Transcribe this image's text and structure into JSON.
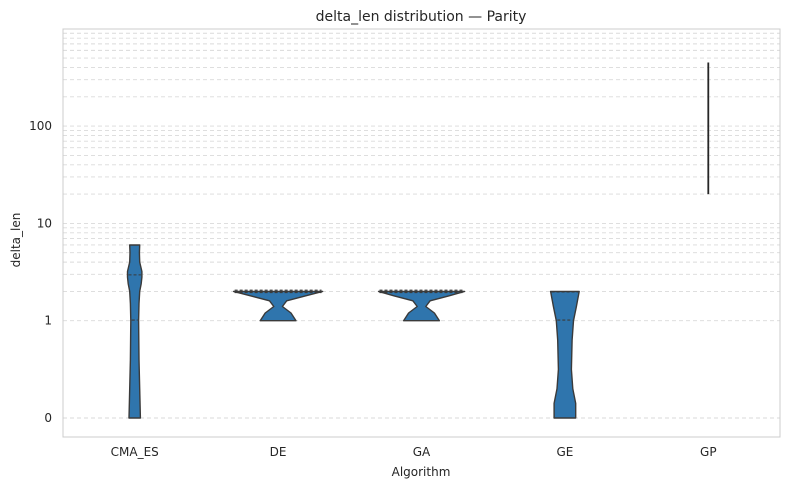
{
  "chart_data": {
    "type": "violin",
    "title": "delta_len distribution — Parity",
    "xlabel": "Algorithm",
    "ylabel": "delta_len",
    "yscale": "symlog",
    "y_ticks": [
      0,
      1,
      10,
      100
    ],
    "y_tick_labels": [
      "0",
      "1",
      "10",
      "100"
    ],
    "ylim": [
      -0.15,
      700
    ],
    "grid": "y",
    "categories": [
      "CMA_ES",
      "DE",
      "GA",
      "GE",
      "GP"
    ],
    "violin_color": "#2f75ad",
    "edge_color": "#3a3a3a",
    "violins": [
      {
        "category": "CMA_ES",
        "kind": "violin",
        "profile": [
          [
            0,
            0.08
          ],
          [
            0.3,
            0.07
          ],
          [
            0.6,
            0.06
          ],
          [
            1.0,
            0.055
          ],
          [
            1.5,
            0.06
          ],
          [
            2.0,
            0.07
          ],
          [
            2.4,
            0.09
          ],
          [
            2.8,
            0.1
          ],
          [
            3.2,
            0.1
          ],
          [
            4.0,
            0.07
          ],
          [
            5.0,
            0.065
          ],
          [
            6.0,
            0.07
          ]
        ],
        "quartiles": [
          1,
          3
        ]
      },
      {
        "category": "DE",
        "kind": "violin",
        "profile": [
          [
            1,
            0.25
          ],
          [
            1.2,
            0.18
          ],
          [
            1.4,
            0.06
          ],
          [
            1.6,
            0.12
          ],
          [
            1.8,
            0.38
          ],
          [
            2.0,
            0.62
          ]
        ],
        "quartiles": [
          2,
          2,
          2
        ]
      },
      {
        "category": "GA",
        "kind": "violin",
        "profile": [
          [
            1,
            0.25
          ],
          [
            1.2,
            0.18
          ],
          [
            1.4,
            0.06
          ],
          [
            1.6,
            0.12
          ],
          [
            1.8,
            0.38
          ],
          [
            2.0,
            0.6
          ]
        ],
        "quartiles": [
          2,
          2,
          2
        ]
      },
      {
        "category": "GE",
        "kind": "violin",
        "profile": [
          [
            0,
            0.15
          ],
          [
            0.15,
            0.15
          ],
          [
            0.3,
            0.11
          ],
          [
            0.5,
            0.09
          ],
          [
            0.8,
            0.1
          ],
          [
            1.0,
            0.12
          ],
          [
            1.4,
            0.16
          ],
          [
            2.0,
            0.2
          ]
        ],
        "quartiles": [
          1,
          2
        ]
      },
      {
        "category": "GP",
        "kind": "line",
        "min": 20,
        "max": 450
      }
    ]
  }
}
